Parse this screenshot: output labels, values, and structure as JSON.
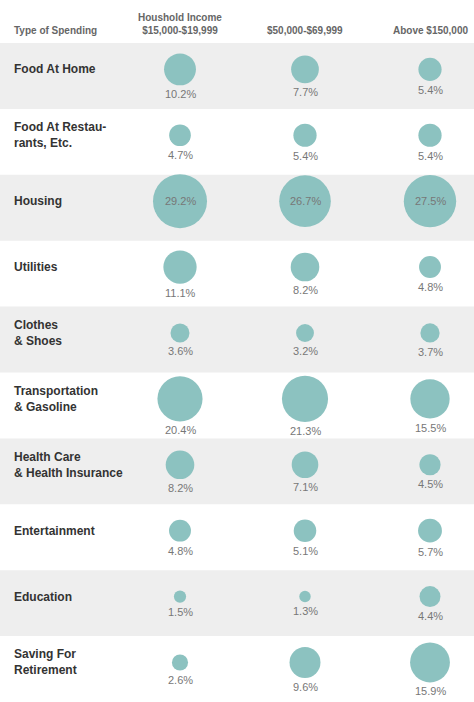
{
  "chart_data": {
    "type": "bubble",
    "ylabel": "Type of Spending",
    "categories": [
      "Food At Home",
      "Food At Restau-\nrants, Etc.",
      "Housing",
      "Utilities",
      "Clothes\n& Shoes",
      "Transportation\n& Gasoline",
      "Health Care\n& Health Insurance",
      "Entertainment",
      "Education",
      "Saving For\nRetirement"
    ],
    "series": [
      {
        "name": "Houshold Income\n$15,000-$19,999",
        "values": [
          10.2,
          4.7,
          29.2,
          11.1,
          3.6,
          20.4,
          8.2,
          4.8,
          1.5,
          2.6
        ],
        "value_labels": [
          "10.2%",
          "4.7%",
          "29.2%",
          "11.1%",
          "3.6%",
          "20.4%",
          "8.2%",
          "4.8%",
          "1.5%",
          "2.6%"
        ]
      },
      {
        "name": "$50,000-$69,999",
        "values": [
          7.7,
          5.4,
          26.7,
          8.2,
          3.2,
          21.3,
          7.1,
          5.1,
          1.3,
          9.6
        ],
        "value_labels": [
          "7.7%",
          "5.4%",
          "26.7%",
          "8.2%",
          "3.2%",
          "21.3%",
          "7.1%",
          "5.1%",
          "1.3%",
          "9.6%"
        ]
      },
      {
        "name": "Above $150,000",
        "values": [
          5.4,
          5.4,
          27.5,
          4.8,
          3.7,
          15.5,
          4.5,
          5.7,
          4.4,
          15.9
        ],
        "value_labels": [
          "5.4%",
          "5.4%",
          "27.5%",
          "4.8%",
          "3.7%",
          "15.5%",
          "4.5%",
          "5.7%",
          "4.4%",
          "15.9%"
        ]
      }
    ],
    "color": "#8cc2c0",
    "data_labels": true,
    "tick_labels": false,
    "grid": false
  }
}
